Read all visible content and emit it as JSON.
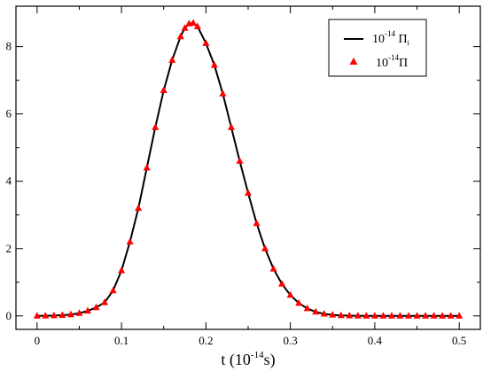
{
  "chart_data": {
    "type": "line",
    "title": "",
    "xlabel": {
      "base": "t (10",
      "sup": "-14",
      "tail": "s)"
    },
    "ylabel": "",
    "xlim": [
      -0.025,
      0.525
    ],
    "ylim": [
      -0.4,
      9.2
    ],
    "x_ticks": [
      0,
      0.1,
      0.2,
      0.3,
      0.4,
      0.5
    ],
    "x_tick_labels": [
      "0",
      "0.1",
      "0.2",
      "0.3",
      "0.4",
      "0.5"
    ],
    "y_ticks": [
      0,
      2,
      4,
      6,
      8
    ],
    "y_tick_labels": [
      "0",
      "2",
      "4",
      "6",
      "8"
    ],
    "grid": false,
    "legend_position": "top-right",
    "x": [
      0.0,
      0.01,
      0.02,
      0.03,
      0.04,
      0.05,
      0.06,
      0.07,
      0.08,
      0.09,
      0.1,
      0.11,
      0.12,
      0.13,
      0.14,
      0.15,
      0.16,
      0.17,
      0.175,
      0.18,
      0.185,
      0.19,
      0.2,
      0.21,
      0.22,
      0.23,
      0.24,
      0.25,
      0.26,
      0.27,
      0.28,
      0.29,
      0.3,
      0.31,
      0.32,
      0.33,
      0.34,
      0.35,
      0.36,
      0.37,
      0.38,
      0.39,
      0.4,
      0.41,
      0.42,
      0.43,
      0.44,
      0.45,
      0.46,
      0.47,
      0.48,
      0.49,
      0.5
    ],
    "series": [
      {
        "name": {
          "prefix": "10",
          "sup": "-14",
          "symbol": " Π",
          "sub": "i"
        },
        "style": "line",
        "color": "#000000",
        "values": [
          0.0,
          0.003,
          0.01,
          0.02,
          0.04,
          0.08,
          0.15,
          0.25,
          0.4,
          0.75,
          1.35,
          2.2,
          3.2,
          4.4,
          5.6,
          6.7,
          7.6,
          8.3,
          8.55,
          8.68,
          8.7,
          8.6,
          8.1,
          7.45,
          6.6,
          5.6,
          4.6,
          3.65,
          2.75,
          2.0,
          1.4,
          0.95,
          0.62,
          0.38,
          0.22,
          0.12,
          0.06,
          0.03,
          0.014,
          0.007,
          0.003,
          0.002,
          0.001,
          0.0,
          0.0,
          0.0,
          0.0,
          0.0,
          0.0,
          0.0,
          0.0,
          0.0,
          0.0
        ]
      },
      {
        "name": {
          "prefix": "10",
          "sup": "-14",
          "symbol": "Π",
          "sub": ""
        },
        "style": "triangle-markers",
        "color": "#ff0000",
        "values": [
          0.0,
          0.003,
          0.01,
          0.02,
          0.04,
          0.08,
          0.15,
          0.25,
          0.4,
          0.75,
          1.35,
          2.2,
          3.2,
          4.4,
          5.6,
          6.7,
          7.6,
          8.3,
          8.55,
          8.68,
          8.7,
          8.6,
          8.1,
          7.45,
          6.6,
          5.6,
          4.6,
          3.65,
          2.75,
          2.0,
          1.4,
          0.95,
          0.62,
          0.38,
          0.22,
          0.12,
          0.06,
          0.03,
          0.014,
          0.007,
          0.003,
          0.002,
          0.001,
          0.0,
          0.0,
          0.0,
          0.0,
          0.0,
          0.0,
          0.0,
          0.0,
          0.0,
          0.0
        ]
      }
    ]
  }
}
